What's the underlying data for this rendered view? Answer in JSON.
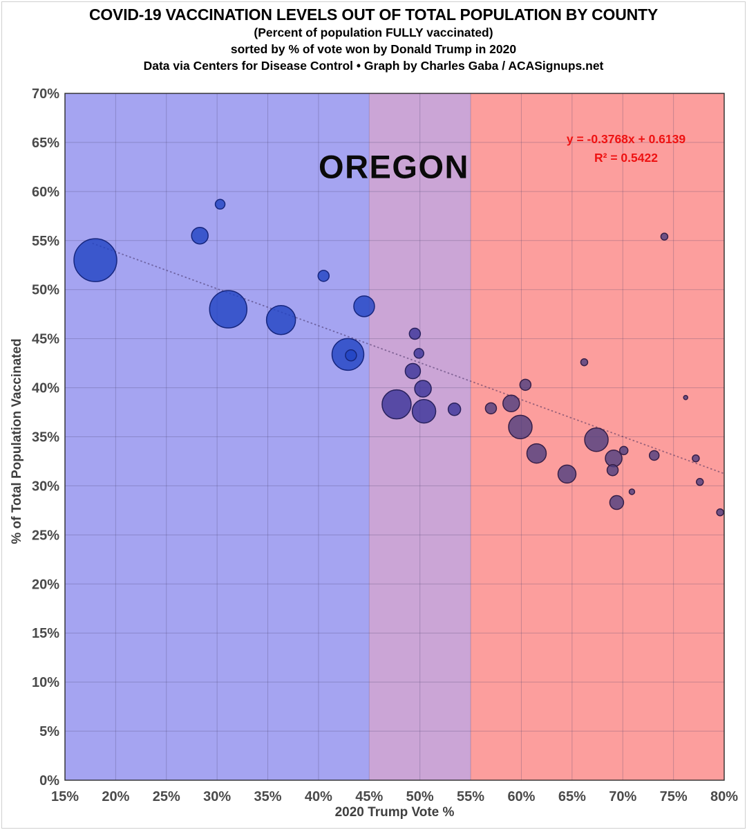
{
  "header": {
    "title": "COVID-19 VACCINATION LEVELS OUT OF TOTAL POPULATION BY COUNTY",
    "subtitle1": "(Percent of population FULLY vaccinated)",
    "subtitle2": "sorted by % of vote won by Donald Trump in 2020",
    "subtitle3": "Data via Centers for Disease Control • Graph by Charles Gaba / ACASignups.net"
  },
  "chart_data": {
    "type": "scatter",
    "state_label": "OREGON",
    "annotation": {
      "equation": "y = -0.3768x + 0.6139",
      "r_squared": "R² = 0.5422",
      "color": "#ee1212"
    },
    "xlabel": "2020 Trump Vote %",
    "ylabel": "% of Total Population Vaccinated",
    "xlim": [
      15,
      80
    ],
    "ylim": [
      0,
      70
    ],
    "x_ticks": [
      15,
      20,
      25,
      30,
      35,
      40,
      45,
      50,
      55,
      60,
      65,
      70,
      75,
      80
    ],
    "y_ticks": [
      0,
      5,
      10,
      15,
      20,
      25,
      30,
      35,
      40,
      45,
      50,
      55,
      60,
      65,
      70
    ],
    "grid": true,
    "legend": "none",
    "bands": [
      {
        "name": "blue-lean",
        "from": 15,
        "to": 45,
        "color": "#a5a4f1"
      },
      {
        "name": "swing",
        "from": 45,
        "to": 55,
        "color": "#cba5d6"
      },
      {
        "name": "red-lean",
        "from": 55,
        "to": 80,
        "color": "#fc9e9d"
      }
    ],
    "series_style": {
      "blue": {
        "fill": "#2144c3",
        "stroke": "#16267e"
      },
      "purple": {
        "fill": "#393399",
        "stroke": "#28215c"
      },
      "red": {
        "fill": "#4c3d80",
        "stroke": "#371f47"
      },
      "fill_opacity": 0.8
    },
    "trendline": {
      "slope": -0.3768,
      "intercept": 0.6139,
      "x_start": 17.7,
      "x_end": 79.9,
      "style": "dotted"
    },
    "points": [
      {
        "x": 18.0,
        "y": 53.0,
        "r": 31
      },
      {
        "x": 28.3,
        "y": 55.5,
        "r": 12
      },
      {
        "x": 30.3,
        "y": 58.7,
        "r": 7
      },
      {
        "x": 31.1,
        "y": 48.0,
        "r": 27
      },
      {
        "x": 36.3,
        "y": 46.9,
        "r": 21
      },
      {
        "x": 40.5,
        "y": 51.4,
        "r": 8
      },
      {
        "x": 42.9,
        "y": 43.4,
        "r": 23
      },
      {
        "x": 43.2,
        "y": 43.3,
        "r": 8
      },
      {
        "x": 44.5,
        "y": 48.3,
        "r": 15
      },
      {
        "x": 47.7,
        "y": 38.3,
        "r": 21
      },
      {
        "x": 49.3,
        "y": 41.7,
        "r": 11
      },
      {
        "x": 49.5,
        "y": 45.5,
        "r": 8
      },
      {
        "x": 49.9,
        "y": 43.5,
        "r": 7
      },
      {
        "x": 50.3,
        "y": 39.9,
        "r": 12
      },
      {
        "x": 50.4,
        "y": 37.6,
        "r": 17
      },
      {
        "x": 53.4,
        "y": 37.8,
        "r": 9
      },
      {
        "x": 57.0,
        "y": 37.9,
        "r": 8
      },
      {
        "x": 59.0,
        "y": 38.4,
        "r": 12
      },
      {
        "x": 59.9,
        "y": 36.0,
        "r": 17
      },
      {
        "x": 60.4,
        "y": 40.3,
        "r": 8
      },
      {
        "x": 61.5,
        "y": 33.3,
        "r": 14
      },
      {
        "x": 64.5,
        "y": 31.2,
        "r": 13
      },
      {
        "x": 66.2,
        "y": 42.6,
        "r": 5
      },
      {
        "x": 67.4,
        "y": 34.7,
        "r": 17
      },
      {
        "x": 69.0,
        "y": 31.6,
        "r": 8
      },
      {
        "x": 69.1,
        "y": 32.8,
        "r": 12
      },
      {
        "x": 69.4,
        "y": 28.3,
        "r": 10
      },
      {
        "x": 70.1,
        "y": 33.6,
        "r": 6
      },
      {
        "x": 70.9,
        "y": 29.4,
        "r": 4
      },
      {
        "x": 73.1,
        "y": 33.1,
        "r": 7
      },
      {
        "x": 74.1,
        "y": 55.4,
        "r": 5
      },
      {
        "x": 76.2,
        "y": 39.0,
        "r": 3
      },
      {
        "x": 77.2,
        "y": 32.8,
        "r": 5
      },
      {
        "x": 77.6,
        "y": 30.4,
        "r": 5
      },
      {
        "x": 79.6,
        "y": 27.3,
        "r": 5
      }
    ],
    "style": {
      "grid_color": "rgba(70,60,105,0.28)",
      "plot_border_color": "#2b2b2b",
      "tick_label_color": "#4a4a4a",
      "trend_color": "rgba(55,35,85,0.5)"
    }
  }
}
